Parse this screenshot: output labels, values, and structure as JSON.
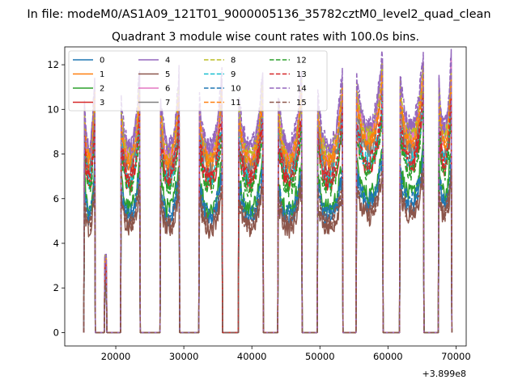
{
  "chart_data": {
    "type": "line",
    "suptitle": "In file: modeM0/AS1A09_121T01_9000005136_35782cztM0_level2_quad_clean",
    "title": "Quadrant 3 module wise count rates with 100.0s bins.",
    "xlabel": "",
    "ylabel": "",
    "x_offset_label": "+3.899e8",
    "xlim": [
      12500,
      71500
    ],
    "ylim": [
      -0.6,
      12.8
    ],
    "x_ticks": [
      20000,
      30000,
      40000,
      50000,
      60000,
      70000
    ],
    "x_tick_labels": [
      "20000",
      "30000",
      "40000",
      "50000",
      "60000",
      "70000"
    ],
    "y_ticks": [
      0,
      2,
      4,
      6,
      8,
      10,
      12
    ],
    "y_tick_labels": [
      "0",
      "2",
      "4",
      "6",
      "8",
      "10",
      "12"
    ],
    "legend_location": "top-left",
    "legend_columns": 4,
    "segments": [
      {
        "start": 15400,
        "end": 16900
      },
      {
        "start": 18400,
        "end": 18600
      },
      {
        "start": 20800,
        "end": 23500
      },
      {
        "start": 26600,
        "end": 29300
      },
      {
        "start": 32300,
        "end": 35600
      },
      {
        "start": 38100,
        "end": 41600
      },
      {
        "start": 43900,
        "end": 47300
      },
      {
        "start": 49700,
        "end": 53300
      },
      {
        "start": 55400,
        "end": 59200
      },
      {
        "start": 61800,
        "end": 65200
      },
      {
        "start": 67500,
        "end": 69300
      }
    ],
    "series": [
      {
        "name": "0",
        "base": 5.8,
        "color": "#1f77b4",
        "dash": "solid"
      },
      {
        "name": "1",
        "base": 8.6,
        "color": "#ff7f0e",
        "dash": "solid"
      },
      {
        "name": "2",
        "base": 6.3,
        "color": "#2ca02c",
        "dash": "solid"
      },
      {
        "name": "3",
        "base": 7.6,
        "color": "#d62728",
        "dash": "solid"
      },
      {
        "name": "4",
        "base": 9.3,
        "color": "#9467bd",
        "dash": "solid"
      },
      {
        "name": "5",
        "base": 5.3,
        "color": "#8c564b",
        "dash": "solid"
      },
      {
        "name": "6",
        "base": 8.9,
        "color": "#e377c2",
        "dash": "solid"
      },
      {
        "name": "7",
        "base": 8.3,
        "color": "#7f7f7f",
        "dash": "solid"
      },
      {
        "name": "8",
        "base": 9.0,
        "color": "#bcbd22",
        "dash": "dashed"
      },
      {
        "name": "9",
        "base": 7.8,
        "color": "#17becf",
        "dash": "dashed"
      },
      {
        "name": "10",
        "base": 6.0,
        "color": "#1f77b4",
        "dash": "dashed"
      },
      {
        "name": "11",
        "base": 8.7,
        "color": "#ff7f0e",
        "dash": "dashed"
      },
      {
        "name": "12",
        "base": 7.4,
        "color": "#2ca02c",
        "dash": "dashed"
      },
      {
        "name": "13",
        "base": 7.9,
        "color": "#d62728",
        "dash": "dashed"
      },
      {
        "name": "14",
        "base": 9.5,
        "color": "#9467bd",
        "dash": "dashed"
      },
      {
        "name": "15",
        "base": 5.5,
        "color": "#8c564b",
        "dash": "dashed"
      }
    ],
    "step_s": 100
  }
}
